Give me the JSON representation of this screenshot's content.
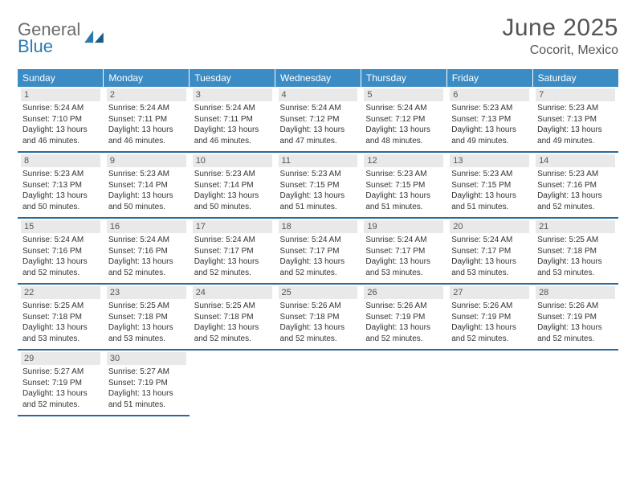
{
  "logo": {
    "general": "General",
    "blue": "Blue"
  },
  "title": "June 2025",
  "location": "Cocorit, Mexico",
  "colors": {
    "header_bg": "#3b8bc4",
    "header_text": "#ffffff",
    "border": "#2a6a9a",
    "daynum_bg": "#e9e9e9",
    "text": "#333333",
    "title_text": "#555555",
    "logo_gray": "#6c6c6c",
    "logo_blue": "#2a7ab0"
  },
  "dayNames": [
    "Sunday",
    "Monday",
    "Tuesday",
    "Wednesday",
    "Thursday",
    "Friday",
    "Saturday"
  ],
  "weeks": [
    [
      {
        "d": "1",
        "sr": "Sunrise: 5:24 AM",
        "ss": "Sunset: 7:10 PM",
        "dl1": "Daylight: 13 hours",
        "dl2": "and 46 minutes."
      },
      {
        "d": "2",
        "sr": "Sunrise: 5:24 AM",
        "ss": "Sunset: 7:11 PM",
        "dl1": "Daylight: 13 hours",
        "dl2": "and 46 minutes."
      },
      {
        "d": "3",
        "sr": "Sunrise: 5:24 AM",
        "ss": "Sunset: 7:11 PM",
        "dl1": "Daylight: 13 hours",
        "dl2": "and 46 minutes."
      },
      {
        "d": "4",
        "sr": "Sunrise: 5:24 AM",
        "ss": "Sunset: 7:12 PM",
        "dl1": "Daylight: 13 hours",
        "dl2": "and 47 minutes."
      },
      {
        "d": "5",
        "sr": "Sunrise: 5:24 AM",
        "ss": "Sunset: 7:12 PM",
        "dl1": "Daylight: 13 hours",
        "dl2": "and 48 minutes."
      },
      {
        "d": "6",
        "sr": "Sunrise: 5:23 AM",
        "ss": "Sunset: 7:13 PM",
        "dl1": "Daylight: 13 hours",
        "dl2": "and 49 minutes."
      },
      {
        "d": "7",
        "sr": "Sunrise: 5:23 AM",
        "ss": "Sunset: 7:13 PM",
        "dl1": "Daylight: 13 hours",
        "dl2": "and 49 minutes."
      }
    ],
    [
      {
        "d": "8",
        "sr": "Sunrise: 5:23 AM",
        "ss": "Sunset: 7:13 PM",
        "dl1": "Daylight: 13 hours",
        "dl2": "and 50 minutes."
      },
      {
        "d": "9",
        "sr": "Sunrise: 5:23 AM",
        "ss": "Sunset: 7:14 PM",
        "dl1": "Daylight: 13 hours",
        "dl2": "and 50 minutes."
      },
      {
        "d": "10",
        "sr": "Sunrise: 5:23 AM",
        "ss": "Sunset: 7:14 PM",
        "dl1": "Daylight: 13 hours",
        "dl2": "and 50 minutes."
      },
      {
        "d": "11",
        "sr": "Sunrise: 5:23 AM",
        "ss": "Sunset: 7:15 PM",
        "dl1": "Daylight: 13 hours",
        "dl2": "and 51 minutes."
      },
      {
        "d": "12",
        "sr": "Sunrise: 5:23 AM",
        "ss": "Sunset: 7:15 PM",
        "dl1": "Daylight: 13 hours",
        "dl2": "and 51 minutes."
      },
      {
        "d": "13",
        "sr": "Sunrise: 5:23 AM",
        "ss": "Sunset: 7:15 PM",
        "dl1": "Daylight: 13 hours",
        "dl2": "and 51 minutes."
      },
      {
        "d": "14",
        "sr": "Sunrise: 5:23 AM",
        "ss": "Sunset: 7:16 PM",
        "dl1": "Daylight: 13 hours",
        "dl2": "and 52 minutes."
      }
    ],
    [
      {
        "d": "15",
        "sr": "Sunrise: 5:24 AM",
        "ss": "Sunset: 7:16 PM",
        "dl1": "Daylight: 13 hours",
        "dl2": "and 52 minutes."
      },
      {
        "d": "16",
        "sr": "Sunrise: 5:24 AM",
        "ss": "Sunset: 7:16 PM",
        "dl1": "Daylight: 13 hours",
        "dl2": "and 52 minutes."
      },
      {
        "d": "17",
        "sr": "Sunrise: 5:24 AM",
        "ss": "Sunset: 7:17 PM",
        "dl1": "Daylight: 13 hours",
        "dl2": "and 52 minutes."
      },
      {
        "d": "18",
        "sr": "Sunrise: 5:24 AM",
        "ss": "Sunset: 7:17 PM",
        "dl1": "Daylight: 13 hours",
        "dl2": "and 52 minutes."
      },
      {
        "d": "19",
        "sr": "Sunrise: 5:24 AM",
        "ss": "Sunset: 7:17 PM",
        "dl1": "Daylight: 13 hours",
        "dl2": "and 53 minutes."
      },
      {
        "d": "20",
        "sr": "Sunrise: 5:24 AM",
        "ss": "Sunset: 7:17 PM",
        "dl1": "Daylight: 13 hours",
        "dl2": "and 53 minutes."
      },
      {
        "d": "21",
        "sr": "Sunrise: 5:25 AM",
        "ss": "Sunset: 7:18 PM",
        "dl1": "Daylight: 13 hours",
        "dl2": "and 53 minutes."
      }
    ],
    [
      {
        "d": "22",
        "sr": "Sunrise: 5:25 AM",
        "ss": "Sunset: 7:18 PM",
        "dl1": "Daylight: 13 hours",
        "dl2": "and 53 minutes."
      },
      {
        "d": "23",
        "sr": "Sunrise: 5:25 AM",
        "ss": "Sunset: 7:18 PM",
        "dl1": "Daylight: 13 hours",
        "dl2": "and 53 minutes."
      },
      {
        "d": "24",
        "sr": "Sunrise: 5:25 AM",
        "ss": "Sunset: 7:18 PM",
        "dl1": "Daylight: 13 hours",
        "dl2": "and 52 minutes."
      },
      {
        "d": "25",
        "sr": "Sunrise: 5:26 AM",
        "ss": "Sunset: 7:18 PM",
        "dl1": "Daylight: 13 hours",
        "dl2": "and 52 minutes."
      },
      {
        "d": "26",
        "sr": "Sunrise: 5:26 AM",
        "ss": "Sunset: 7:19 PM",
        "dl1": "Daylight: 13 hours",
        "dl2": "and 52 minutes."
      },
      {
        "d": "27",
        "sr": "Sunrise: 5:26 AM",
        "ss": "Sunset: 7:19 PM",
        "dl1": "Daylight: 13 hours",
        "dl2": "and 52 minutes."
      },
      {
        "d": "28",
        "sr": "Sunrise: 5:26 AM",
        "ss": "Sunset: 7:19 PM",
        "dl1": "Daylight: 13 hours",
        "dl2": "and 52 minutes."
      }
    ],
    [
      {
        "d": "29",
        "sr": "Sunrise: 5:27 AM",
        "ss": "Sunset: 7:19 PM",
        "dl1": "Daylight: 13 hours",
        "dl2": "and 52 minutes."
      },
      {
        "d": "30",
        "sr": "Sunrise: 5:27 AM",
        "ss": "Sunset: 7:19 PM",
        "dl1": "Daylight: 13 hours",
        "dl2": "and 51 minutes."
      },
      null,
      null,
      null,
      null,
      null
    ]
  ]
}
